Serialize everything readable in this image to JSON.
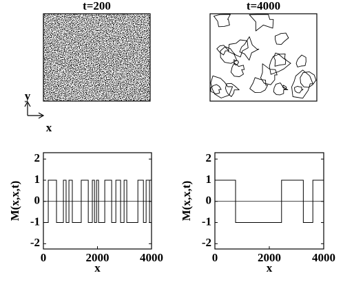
{
  "axes_indicator": {
    "x": "x",
    "y": "y"
  },
  "chart_data": [
    {
      "type": "line",
      "title": "t=200",
      "xlabel": "x",
      "ylabel": "M(x,x,t)",
      "xlim": [
        0,
        4000
      ],
      "xticks": [
        0,
        2000,
        4000
      ],
      "ylim": [
        -2.25,
        2.3
      ],
      "yticks": [
        -2,
        -1,
        0,
        1,
        2
      ],
      "hline": 0,
      "color": "#000000",
      "snapshot": "noise",
      "x": [
        0,
        180,
        180,
        485,
        485,
        740,
        740,
        840,
        840,
        945,
        945,
        1070,
        1070,
        1400,
        1400,
        1660,
        1660,
        1810,
        1810,
        1890,
        1890,
        1965,
        1965,
        2040,
        2040,
        2270,
        2270,
        2525,
        2525,
        2680,
        2680,
        2855,
        2855,
        2985,
        2985,
        3085,
        3085,
        3495,
        3495,
        3700,
        3700,
        3800,
        3800,
        3925,
        3925,
        4000
      ],
      "values": [
        -1,
        -1,
        1,
        1,
        -1,
        -1,
        1,
        1,
        -1,
        -1,
        1,
        1,
        -1,
        -1,
        1,
        1,
        -1,
        -1,
        1,
        1,
        -1,
        -1,
        1,
        1,
        -1,
        -1,
        1,
        1,
        -1,
        -1,
        1,
        1,
        -1,
        -1,
        1,
        1,
        -1,
        -1,
        1,
        1,
        -1,
        -1,
        1,
        1,
        -1,
        -1
      ]
    },
    {
      "type": "line",
      "title": "t=4000",
      "xlabel": "x",
      "ylabel": "M(x,x,t)",
      "xlim": [
        0,
        4000
      ],
      "xticks": [
        0,
        2000,
        4000
      ],
      "ylim": [
        -2.25,
        2.3
      ],
      "yticks": [
        -2,
        -1,
        0,
        1,
        2
      ],
      "hline": 0,
      "color": "#000000",
      "snapshot": "domains",
      "x": [
        0,
        760,
        760,
        2450,
        2450,
        3250,
        3250,
        3600,
        3600,
        4000
      ],
      "values": [
        1,
        1,
        -1,
        -1,
        1,
        1,
        -1,
        -1,
        1,
        1
      ]
    }
  ]
}
